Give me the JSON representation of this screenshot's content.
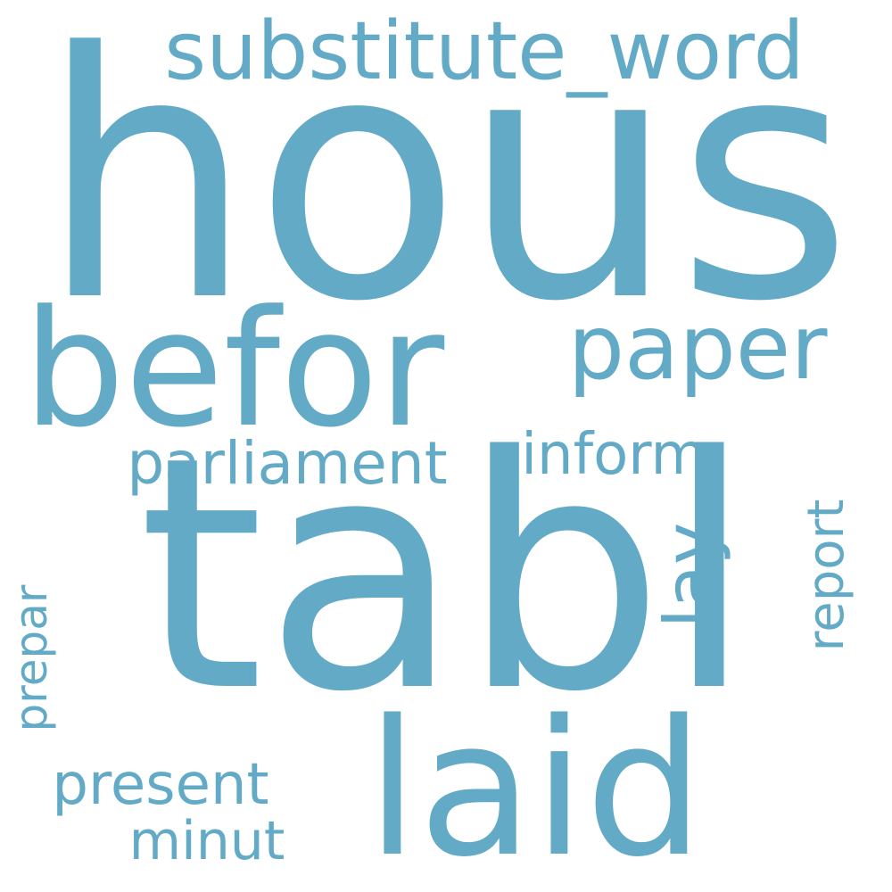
{
  "word_color": "#63aac7",
  "background": "#ffffff",
  "words": {
    "hous": "hous",
    "tabl": "tabl",
    "befor": "befor",
    "substitute_word": "substitute_word",
    "laid": "laid",
    "paper": "paper",
    "parliament": "parliament",
    "inform": "inform",
    "lay": "lay",
    "report": "report",
    "prepar": "prepar",
    "present": "present",
    "minut": "minut"
  }
}
